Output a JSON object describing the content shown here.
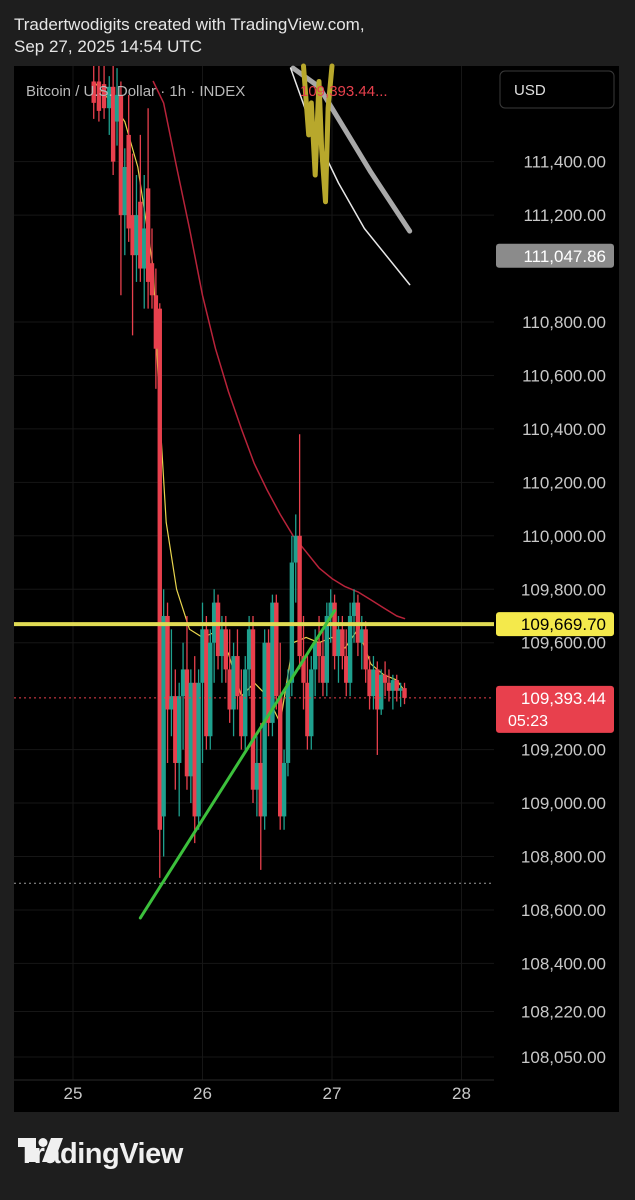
{
  "header": {
    "line1": "Tradertwodigits created with TradingView.com,",
    "line2": "Sep 27, 2025 14:54 UTC"
  },
  "symbol": {
    "title": "Bitcoin / U.S. Dollar · 1h · INDEX",
    "price": "109,393.44..."
  },
  "currency_button": "USD",
  "footer": {
    "brand": "TradingView"
  },
  "colors": {
    "up": "#1fa08e",
    "down": "#e8404d",
    "ema_fast": "#e8d44d",
    "ema_slow": "#b8233a",
    "resistance": "#e1dc54",
    "trendline": "#3cc03c"
  },
  "chart_data": {
    "type": "line",
    "symbol": "Bitcoin / U.S. Dollar",
    "interval": "1h",
    "yticks": [
      {
        "label": "111,400.00",
        "v": 111400
      },
      {
        "label": "111,200.00",
        "v": 111200
      },
      {
        "label": "110,800.00",
        "v": 110800
      },
      {
        "label": "110,600.00",
        "v": 110600
      },
      {
        "label": "110,400.00",
        "v": 110400
      },
      {
        "label": "110,200.00",
        "v": 110200
      },
      {
        "label": "110,000.00",
        "v": 110000
      },
      {
        "label": "109,800.00",
        "v": 109800
      },
      {
        "label": "109,600.00",
        "v": 109600
      },
      {
        "label": "109,200.00",
        "v": 109200
      },
      {
        "label": "109,000.00",
        "v": 109000
      },
      {
        "label": "108,800.00",
        "v": 108800
      },
      {
        "label": "108,600.00",
        "v": 108600
      },
      {
        "label": "108,400.00",
        "v": 108400
      },
      {
        "label": "108,220.00",
        "v": 108220
      },
      {
        "label": "108,050.00",
        "v": 108050
      }
    ],
    "xticks": [
      {
        "label": "25",
        "t": 25
      },
      {
        "label": "26",
        "t": 26
      },
      {
        "label": "27",
        "t": 27
      },
      {
        "label": "28",
        "t": 28
      }
    ],
    "price_labels": [
      {
        "text": "111,047.86",
        "v": 111047.86,
        "kind": "gray"
      },
      {
        "text": "109,669.70",
        "v": 109669.7,
        "kind": "yellow"
      },
      {
        "text": "109,393.44",
        "sub": "05:23",
        "v": 109393.44,
        "kind": "red"
      }
    ],
    "horizontal_lines": [
      {
        "name": "resistance",
        "v": 109669.7
      },
      {
        "name": "current-price",
        "v": 109393.44
      },
      {
        "name": "session-low",
        "v": 108700
      }
    ],
    "trendline": [
      {
        "t": 25.52,
        "v": 108570
      },
      {
        "t": 27.02,
        "v": 109720
      }
    ],
    "candles": [
      {
        "t": 25.16,
        "o": 111700,
        "h": 111800,
        "l": 111560,
        "c": 111620
      },
      {
        "t": 25.2,
        "o": 111700,
        "h": 111780,
        "l": 111550,
        "c": 111590
      },
      {
        "t": 25.24,
        "o": 111690,
        "h": 111800,
        "l": 111560,
        "c": 111600
      },
      {
        "t": 25.28,
        "o": 111600,
        "h": 111720,
        "l": 111500,
        "c": 111680
      },
      {
        "t": 25.31,
        "o": 111680,
        "h": 111790,
        "l": 111350,
        "c": 111400
      },
      {
        "t": 25.34,
        "o": 111550,
        "h": 111750,
        "l": 111460,
        "c": 111650
      },
      {
        "t": 25.37,
        "o": 111650,
        "h": 111700,
        "l": 110900,
        "c": 111200
      },
      {
        "t": 25.4,
        "o": 111200,
        "h": 111450,
        "l": 111050,
        "c": 111380
      },
      {
        "t": 25.43,
        "o": 111500,
        "h": 111650,
        "l": 111100,
        "c": 111150
      },
      {
        "t": 25.46,
        "o": 111200,
        "h": 111430,
        "l": 110750,
        "c": 111050
      },
      {
        "t": 25.49,
        "o": 111050,
        "h": 111350,
        "l": 110950,
        "c": 111200
      },
      {
        "t": 25.52,
        "o": 111250,
        "h": 111500,
        "l": 110950,
        "c": 111000
      },
      {
        "t": 25.55,
        "o": 111000,
        "h": 111350,
        "l": 110850,
        "c": 111150
      },
      {
        "t": 25.58,
        "o": 111300,
        "h": 111600,
        "l": 110850,
        "c": 110950
      },
      {
        "t": 25.61,
        "o": 111020,
        "h": 111150,
        "l": 110850,
        "c": 110900
      },
      {
        "t": 25.64,
        "o": 110900,
        "h": 111000,
        "l": 110550,
        "c": 110700
      },
      {
        "t": 25.67,
        "o": 110850,
        "h": 110870,
        "l": 108720,
        "c": 108900
      },
      {
        "t": 25.7,
        "o": 108950,
        "h": 109800,
        "l": 108800,
        "c": 109700
      },
      {
        "t": 25.73,
        "o": 109700,
        "h": 109750,
        "l": 109150,
        "c": 109350
      },
      {
        "t": 25.76,
        "o": 109350,
        "h": 109650,
        "l": 109250,
        "c": 109400
      },
      {
        "t": 25.79,
        "o": 109400,
        "h": 109500,
        "l": 109050,
        "c": 109150
      },
      {
        "t": 25.82,
        "o": 109150,
        "h": 109450,
        "l": 108950,
        "c": 109400
      },
      {
        "t": 25.85,
        "o": 109400,
        "h": 109600,
        "l": 109200,
        "c": 109500
      },
      {
        "t": 25.88,
        "o": 109500,
        "h": 109700,
        "l": 109050,
        "c": 109100
      },
      {
        "t": 25.91,
        "o": 109100,
        "h": 109500,
        "l": 109000,
        "c": 109450
      },
      {
        "t": 25.94,
        "o": 109450,
        "h": 109550,
        "l": 108850,
        "c": 108950
      },
      {
        "t": 25.97,
        "o": 108950,
        "h": 109500,
        "l": 108900,
        "c": 109450
      },
      {
        "t": 26.0,
        "o": 109450,
        "h": 109750,
        "l": 109150,
        "c": 109650
      },
      {
        "t": 26.03,
        "o": 109650,
        "h": 109700,
        "l": 109200,
        "c": 109250
      },
      {
        "t": 26.06,
        "o": 109250,
        "h": 109650,
        "l": 109200,
        "c": 109600
      },
      {
        "t": 26.09,
        "o": 109600,
        "h": 109800,
        "l": 109450,
        "c": 109750
      },
      {
        "t": 26.12,
        "o": 109750,
        "h": 109780,
        "l": 109500,
        "c": 109550
      },
      {
        "t": 26.15,
        "o": 109550,
        "h": 109700,
        "l": 109450,
        "c": 109650
      },
      {
        "t": 26.18,
        "o": 109650,
        "h": 109700,
        "l": 109450,
        "c": 109500
      },
      {
        "t": 26.21,
        "o": 109500,
        "h": 109650,
        "l": 109300,
        "c": 109350
      },
      {
        "t": 26.24,
        "o": 109350,
        "h": 109600,
        "l": 109250,
        "c": 109550
      },
      {
        "t": 26.27,
        "o": 109550,
        "h": 109650,
        "l": 109350,
        "c": 109400
      },
      {
        "t": 26.3,
        "o": 109400,
        "h": 109500,
        "l": 109200,
        "c": 109250
      },
      {
        "t": 26.33,
        "o": 109250,
        "h": 109550,
        "l": 109200,
        "c": 109500
      },
      {
        "t": 26.36,
        "o": 109500,
        "h": 109700,
        "l": 109400,
        "c": 109650
      },
      {
        "t": 26.39,
        "o": 109650,
        "h": 109700,
        "l": 109000,
        "c": 109050
      },
      {
        "t": 26.42,
        "o": 109050,
        "h": 109250,
        "l": 108950,
        "c": 109150
      },
      {
        "t": 26.45,
        "o": 109150,
        "h": 109300,
        "l": 108750,
        "c": 108950
      },
      {
        "t": 26.48,
        "o": 108950,
        "h": 109650,
        "l": 108900,
        "c": 109600
      },
      {
        "t": 26.51,
        "o": 109600,
        "h": 109650,
        "l": 109250,
        "c": 109300
      },
      {
        "t": 26.54,
        "o": 109300,
        "h": 109780,
        "l": 109250,
        "c": 109750
      },
      {
        "t": 26.57,
        "o": 109750,
        "h": 109780,
        "l": 109350,
        "c": 109400
      },
      {
        "t": 26.6,
        "o": 109400,
        "h": 109600,
        "l": 108900,
        "c": 108950
      },
      {
        "t": 26.63,
        "o": 108950,
        "h": 109200,
        "l": 108900,
        "c": 109150
      },
      {
        "t": 26.66,
        "o": 109150,
        "h": 109500,
        "l": 109100,
        "c": 109450
      },
      {
        "t": 26.69,
        "o": 109450,
        "h": 110000,
        "l": 109400,
        "c": 109900
      },
      {
        "t": 26.72,
        "o": 109900,
        "h": 110080,
        "l": 109750,
        "c": 110000
      },
      {
        "t": 26.75,
        "o": 110000,
        "h": 110380,
        "l": 109500,
        "c": 109550
      },
      {
        "t": 26.78,
        "o": 109550,
        "h": 109700,
        "l": 109350,
        "c": 109450
      },
      {
        "t": 26.81,
        "o": 109450,
        "h": 109550,
        "l": 109200,
        "c": 109250
      },
      {
        "t": 26.84,
        "o": 109250,
        "h": 109550,
        "l": 109200,
        "c": 109500
      },
      {
        "t": 26.87,
        "o": 109500,
        "h": 109650,
        "l": 109400,
        "c": 109600
      },
      {
        "t": 26.9,
        "o": 109600,
        "h": 109700,
        "l": 109450,
        "c": 109550
      },
      {
        "t": 26.93,
        "o": 109550,
        "h": 109650,
        "l": 109400,
        "c": 109450
      },
      {
        "t": 26.96,
        "o": 109450,
        "h": 109750,
        "l": 109400,
        "c": 109700
      },
      {
        "t": 26.99,
        "o": 109700,
        "h": 109800,
        "l": 109600,
        "c": 109750
      },
      {
        "t": 27.02,
        "o": 109750,
        "h": 109780,
        "l": 109500,
        "c": 109550
      },
      {
        "t": 27.05,
        "o": 109550,
        "h": 109700,
        "l": 109450,
        "c": 109650
      },
      {
        "t": 27.08,
        "o": 109650,
        "h": 109700,
        "l": 109500,
        "c": 109550
      },
      {
        "t": 27.11,
        "o": 109550,
        "h": 109650,
        "l": 109400,
        "c": 109450
      },
      {
        "t": 27.14,
        "o": 109450,
        "h": 109750,
        "l": 109400,
        "c": 109700
      },
      {
        "t": 27.17,
        "o": 109700,
        "h": 109800,
        "l": 109600,
        "c": 109750
      },
      {
        "t": 27.2,
        "o": 109750,
        "h": 109780,
        "l": 109550,
        "c": 109600
      },
      {
        "t": 27.23,
        "o": 109600,
        "h": 109700,
        "l": 109500,
        "c": 109650
      },
      {
        "t": 27.26,
        "o": 109650,
        "h": 109680,
        "l": 109450,
        "c": 109500
      },
      {
        "t": 27.29,
        "o": 109500,
        "h": 109550,
        "l": 109350,
        "c": 109400
      },
      {
        "t": 27.32,
        "o": 109400,
        "h": 109550,
        "l": 109350,
        "c": 109500
      },
      {
        "t": 27.35,
        "o": 109500,
        "h": 109530,
        "l": 109180,
        "c": 109350
      },
      {
        "t": 27.38,
        "o": 109350,
        "h": 109500,
        "l": 109330,
        "c": 109480
      },
      {
        "t": 27.41,
        "o": 109480,
        "h": 109530,
        "l": 109400,
        "c": 109450
      },
      {
        "t": 27.44,
        "o": 109450,
        "h": 109500,
        "l": 109380,
        "c": 109420
      },
      {
        "t": 27.47,
        "o": 109420,
        "h": 109480,
        "l": 109350,
        "c": 109460
      },
      {
        "t": 27.5,
        "o": 109460,
        "h": 109480,
        "l": 109380,
        "c": 109420
      },
      {
        "t": 27.53,
        "o": 109420,
        "h": 109450,
        "l": 109360,
        "c": 109430
      },
      {
        "t": 27.56,
        "o": 109430,
        "h": 109450,
        "l": 109370,
        "c": 109393.44
      }
    ],
    "ema_fast": [
      {
        "t": 25.16,
        "v": 111700
      },
      {
        "t": 25.3,
        "v": 111620
      },
      {
        "t": 25.4,
        "v": 111550
      },
      {
        "t": 25.5,
        "v": 111380
      },
      {
        "t": 25.62,
        "v": 111000
      },
      {
        "t": 25.67,
        "v": 110450
      },
      {
        "t": 25.72,
        "v": 110050
      },
      {
        "t": 25.8,
        "v": 109800
      },
      {
        "t": 25.9,
        "v": 109650
      },
      {
        "t": 26.0,
        "v": 109620
      },
      {
        "t": 26.1,
        "v": 109640
      },
      {
        "t": 26.2,
        "v": 109560
      },
      {
        "t": 26.3,
        "v": 109400
      },
      {
        "t": 26.4,
        "v": 109450
      },
      {
        "t": 26.5,
        "v": 109400
      },
      {
        "t": 26.6,
        "v": 109300
      },
      {
        "t": 26.7,
        "v": 109600
      },
      {
        "t": 26.8,
        "v": 109620
      },
      {
        "t": 26.9,
        "v": 109600
      },
      {
        "t": 27.0,
        "v": 109620
      },
      {
        "t": 27.1,
        "v": 109580
      },
      {
        "t": 27.2,
        "v": 109650
      },
      {
        "t": 27.3,
        "v": 109520
      },
      {
        "t": 27.4,
        "v": 109480
      },
      {
        "t": 27.5,
        "v": 109460
      },
      {
        "t": 27.56,
        "v": 109420
      }
    ],
    "ema_slow": [
      {
        "t": 25.62,
        "v": 111700
      },
      {
        "t": 25.7,
        "v": 111620
      },
      {
        "t": 25.8,
        "v": 111380
      },
      {
        "t": 25.9,
        "v": 111150
      },
      {
        "t": 26.0,
        "v": 110900
      },
      {
        "t": 26.1,
        "v": 110700
      },
      {
        "t": 26.2,
        "v": 110540
      },
      {
        "t": 26.3,
        "v": 110400
      },
      {
        "t": 26.4,
        "v": 110270
      },
      {
        "t": 26.5,
        "v": 110170
      },
      {
        "t": 26.6,
        "v": 110080
      },
      {
        "t": 26.7,
        "v": 110000
      },
      {
        "t": 26.8,
        "v": 109940
      },
      {
        "t": 26.9,
        "v": 109880
      },
      {
        "t": 27.0,
        "v": 109840
      },
      {
        "t": 27.1,
        "v": 109810
      },
      {
        "t": 27.2,
        "v": 109790
      },
      {
        "t": 27.3,
        "v": 109760
      },
      {
        "t": 27.4,
        "v": 109730
      },
      {
        "t": 27.5,
        "v": 109700
      },
      {
        "t": 27.56,
        "v": 109690
      }
    ],
    "overlay_gray": [
      {
        "t": 26.7,
        "v": 111750
      },
      {
        "t": 26.9,
        "v": 111680
      },
      {
        "t": 27.1,
        "v": 111520
      },
      {
        "t": 27.3,
        "v": 111360
      },
      {
        "t": 27.6,
        "v": 111140
      }
    ],
    "overlay_white": [
      {
        "t": 26.68,
        "v": 111750
      },
      {
        "t": 26.85,
        "v": 111520
      },
      {
        "t": 27.05,
        "v": 111320
      },
      {
        "t": 27.25,
        "v": 111150
      },
      {
        "t": 27.6,
        "v": 110940
      }
    ],
    "overlay_yellow": [
      {
        "t": 26.78,
        "v": 111780
      },
      {
        "t": 26.82,
        "v": 111500
      },
      {
        "t": 26.84,
        "v": 111620
      },
      {
        "t": 26.87,
        "v": 111350
      },
      {
        "t": 26.9,
        "v": 111700
      },
      {
        "t": 26.92,
        "v": 111450
      },
      {
        "t": 26.95,
        "v": 111250
      },
      {
        "t": 26.97,
        "v": 111600
      },
      {
        "t": 27.0,
        "v": 111780
      }
    ]
  }
}
